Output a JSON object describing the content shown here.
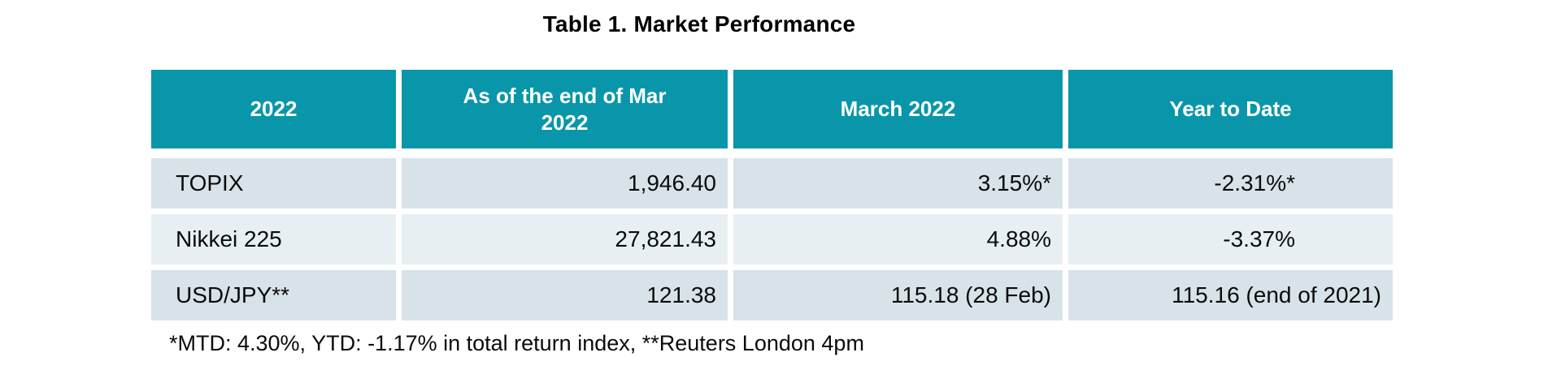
{
  "title": "Table 1. Market Performance",
  "table": {
    "headers": [
      "2022",
      "As of the end of Mar 2022",
      "March 2022",
      "Year to Date"
    ],
    "rows": [
      {
        "label": "TOPIX",
        "values": [
          "1,946.40",
          "3.15%*",
          "-2.31%*"
        ]
      },
      {
        "label": "Nikkei 225",
        "values": [
          "27,821.43",
          "4.88%",
          "-3.37%"
        ]
      },
      {
        "label": "USD/JPY**",
        "values": [
          "121.38",
          "115.18 (28 Feb)",
          "115.16 (end of 2021)"
        ]
      }
    ]
  },
  "footnote": "*MTD: 4.30%, YTD: -1.17% in total return index, **Reuters London 4pm",
  "colors": {
    "header_bg": "#0a96aa",
    "header_text": "#ffffff",
    "row_odd_bg": "#d7e3e9",
    "row_even_bg": "#e8eff3",
    "body_text": "#0b0b0b"
  }
}
